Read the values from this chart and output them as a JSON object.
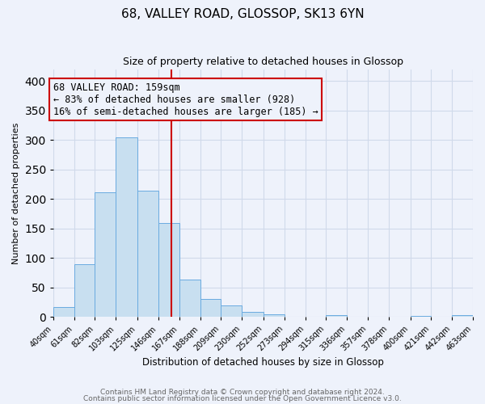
{
  "title": "68, VALLEY ROAD, GLOSSOP, SK13 6YN",
  "subtitle": "Size of property relative to detached houses in Glossop",
  "xlabel": "Distribution of detached houses by size in Glossop",
  "ylabel": "Number of detached properties",
  "bar_edges": [
    40,
    61,
    82,
    103,
    125,
    146,
    167,
    188,
    209,
    230,
    252,
    273,
    294,
    315,
    336,
    357,
    378,
    400,
    421,
    442,
    463
  ],
  "bar_heights": [
    17,
    89,
    211,
    304,
    214,
    160,
    64,
    30,
    20,
    9,
    4,
    0,
    0,
    3,
    0,
    0,
    0,
    2,
    0,
    3
  ],
  "bar_color": "#c8dff0",
  "bar_edge_color": "#6aabe0",
  "vline_x": 159,
  "vline_color": "#cc0000",
  "annotation_text": "68 VALLEY ROAD: 159sqm\n← 83% of detached houses are smaller (928)\n16% of semi-detached houses are larger (185) →",
  "ylim": [
    0,
    420
  ],
  "tick_labels": [
    "40sqm",
    "61sqm",
    "82sqm",
    "103sqm",
    "125sqm",
    "146sqm",
    "167sqm",
    "188sqm",
    "209sqm",
    "230sqm",
    "252sqm",
    "273sqm",
    "294sqm",
    "315sqm",
    "336sqm",
    "357sqm",
    "378sqm",
    "400sqm",
    "421sqm",
    "442sqm",
    "463sqm"
  ],
  "grid_color": "#d0daea",
  "footnote1": "Contains HM Land Registry data © Crown copyright and database right 2024.",
  "footnote2": "Contains public sector information licensed under the Open Government Licence v3.0.",
  "bg_color": "#eef2fb",
  "title_fontsize": 11,
  "subtitle_fontsize": 9,
  "footnote_fontsize": 6.5,
  "footnote_color": "#666666"
}
